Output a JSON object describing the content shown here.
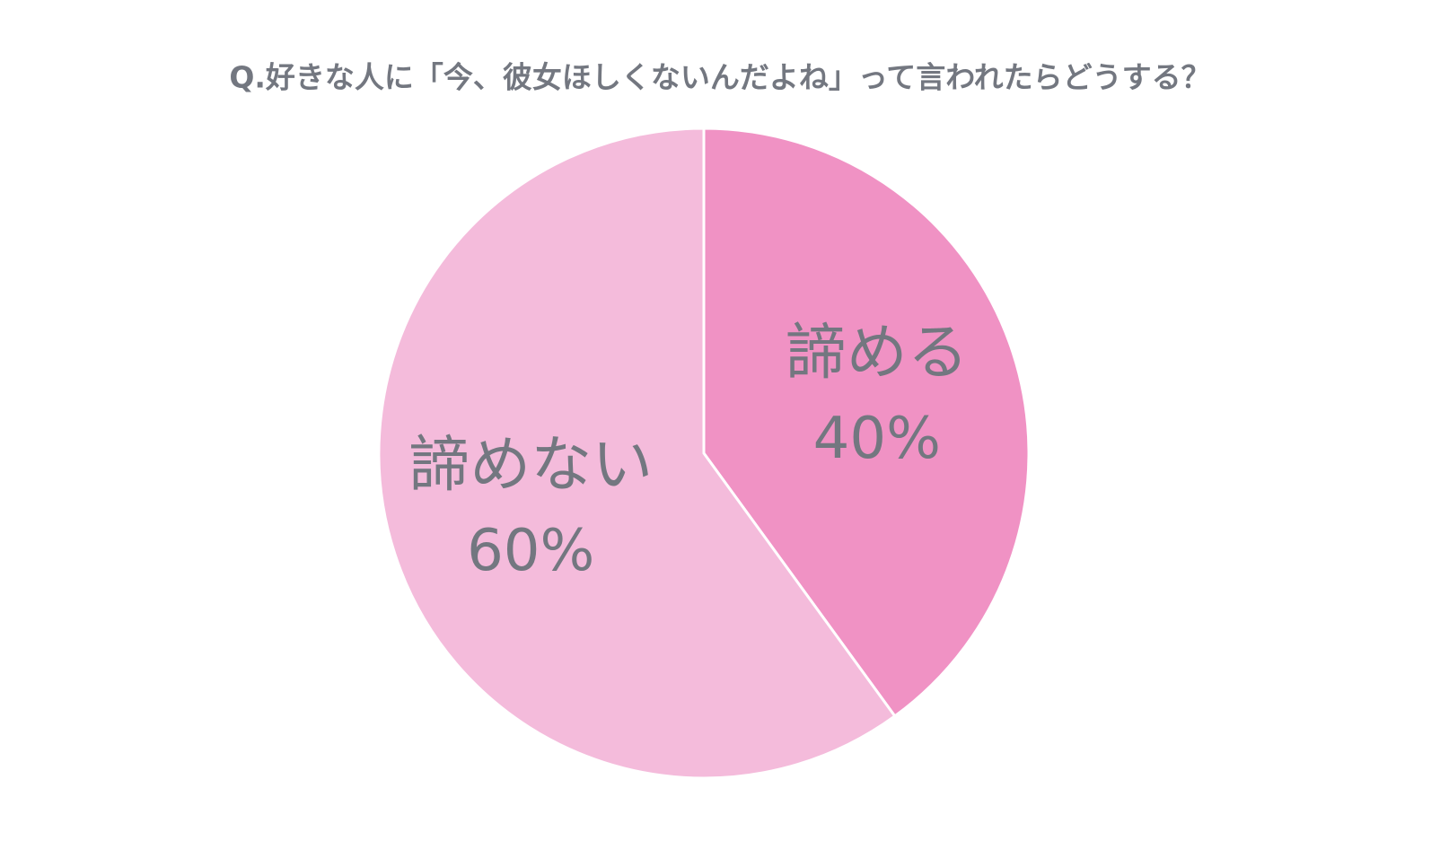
{
  "chart_data": {
    "type": "pie",
    "title": "Q.好きな人に「今、彼女ほしくないんだよね」って言われたらどうする？",
    "categories": [
      "諦める",
      "諦めない"
    ],
    "values": [
      40,
      60
    ],
    "value_labels": [
      "40%",
      "60%"
    ],
    "colors": [
      "#f092c4",
      "#f4bbdb"
    ]
  }
}
